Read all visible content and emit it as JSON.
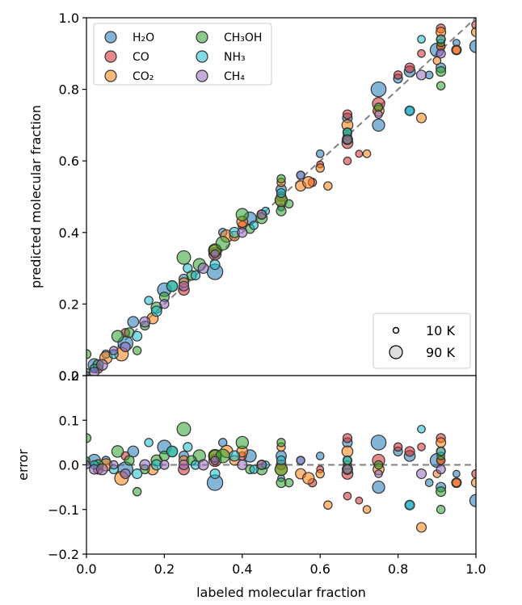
{
  "chart_data": [
    {
      "type": "scatter",
      "panel": "top",
      "xlim": [
        0.0,
        1.0
      ],
      "ylim": [
        0.0,
        1.0
      ],
      "xticks": [
        "0.0",
        "0.2",
        "0.4",
        "0.6",
        "0.8",
        "1.0"
      ],
      "yticks": [
        "0.0",
        "0.2",
        "0.4",
        "0.6",
        "0.8",
        "1.0"
      ],
      "xlabel": "",
      "ylabel": "predicted molecular fraction",
      "reference_line": {
        "style": "dashed",
        "color": "#808080",
        "x": [
          0.0,
          1.0
        ],
        "y": [
          0.0,
          1.0
        ]
      },
      "legend": {
        "placement": "top-left",
        "entries": [
          {
            "label": "H₂O",
            "color": "#1f77b4"
          },
          {
            "label": "CO",
            "color": "#d62728"
          },
          {
            "label": "CO₂",
            "color": "#ff7f0e"
          },
          {
            "label": "CH₃OH",
            "color": "#2ca02c"
          },
          {
            "label": "NH₃",
            "color": "#17becf"
          },
          {
            "label": "CH₄",
            "color": "#9467bd"
          }
        ]
      },
      "size_legend": {
        "placement": "bottom-right",
        "entries": [
          {
            "label": "10 K",
            "temperature_K": 10
          },
          {
            "label": "90 K",
            "temperature_K": 90
          }
        ]
      },
      "series": [
        {
          "name": "H₂O",
          "color": "#1f77b4",
          "points": [
            [
              0.02,
              0.03,
              60
            ],
            [
              0.05,
              0.06,
              30
            ],
            [
              0.1,
              0.09,
              80
            ],
            [
              0.12,
              0.15,
              50
            ],
            [
              0.2,
              0.24,
              70
            ],
            [
              0.25,
              0.27,
              40
            ],
            [
              0.33,
              0.29,
              85
            ],
            [
              0.35,
              0.4,
              30
            ],
            [
              0.42,
              0.44,
              60
            ],
            [
              0.5,
              0.47,
              20
            ],
            [
              0.5,
              0.52,
              45
            ],
            [
              0.6,
              0.62,
              25
            ],
            [
              0.67,
              0.72,
              40
            ],
            [
              0.75,
              0.8,
              80
            ],
            [
              0.75,
              0.7,
              60
            ],
            [
              0.83,
              0.85,
              50
            ],
            [
              0.83,
              0.74,
              30
            ],
            [
              0.9,
              0.91,
              70
            ],
            [
              0.91,
              0.86,
              40
            ],
            [
              0.95,
              0.93,
              20
            ],
            [
              1.0,
              0.92,
              60
            ],
            [
              0.8,
              0.83,
              35
            ],
            [
              0.88,
              0.84,
              25
            ]
          ]
        },
        {
          "name": "CO",
          "color": "#d62728",
          "points": [
            [
              0.03,
              0.02,
              40
            ],
            [
              0.1,
              0.12,
              30
            ],
            [
              0.25,
              0.24,
              50
            ],
            [
              0.33,
              0.34,
              60
            ],
            [
              0.4,
              0.42,
              30
            ],
            [
              0.5,
              0.5,
              40
            ],
            [
              0.6,
              0.59,
              20
            ],
            [
              0.67,
              0.73,
              35
            ],
            [
              0.67,
              0.65,
              50
            ],
            [
              0.67,
              0.6,
              25
            ],
            [
              0.75,
              0.76,
              60
            ],
            [
              0.8,
              0.84,
              30
            ],
            [
              0.83,
              0.86,
              40
            ],
            [
              0.91,
              0.97,
              35
            ],
            [
              0.91,
              0.92,
              30
            ],
            [
              0.95,
              0.91,
              40
            ],
            [
              1.0,
              0.98,
              30
            ],
            [
              0.86,
              0.9,
              25
            ],
            [
              0.58,
              0.54,
              30
            ],
            [
              0.7,
              0.62,
              20
            ]
          ]
        },
        {
          "name": "CO₂",
          "color": "#ff7f0e",
          "points": [
            [
              0.05,
              0.05,
              60
            ],
            [
              0.09,
              0.06,
              70
            ],
            [
              0.17,
              0.16,
              50
            ],
            [
              0.25,
              0.26,
              40
            ],
            [
              0.33,
              0.35,
              65
            ],
            [
              0.36,
              0.39,
              60
            ],
            [
              0.4,
              0.43,
              50
            ],
            [
              0.45,
              0.45,
              40
            ],
            [
              0.5,
              0.49,
              60
            ],
            [
              0.5,
              0.54,
              30
            ],
            [
              0.55,
              0.53,
              45
            ],
            [
              0.57,
              0.54,
              55
            ],
            [
              0.6,
              0.58,
              30
            ],
            [
              0.67,
              0.7,
              50
            ],
            [
              0.67,
              0.67,
              30
            ],
            [
              0.72,
              0.62,
              25
            ],
            [
              0.75,
              0.74,
              50
            ],
            [
              0.86,
              0.72,
              40
            ],
            [
              0.91,
              0.96,
              40
            ],
            [
              0.91,
              0.94,
              35
            ],
            [
              0.91,
              0.92,
              30
            ],
            [
              0.95,
              0.91,
              30
            ],
            [
              1.0,
              0.96,
              35
            ],
            [
              0.38,
              0.39,
              40
            ],
            [
              0.62,
              0.53,
              30
            ],
            [
              0.9,
              0.88,
              25
            ]
          ]
        },
        {
          "name": "CH₃OH",
          "color": "#2ca02c",
          "points": [
            [
              0.0,
              0.06,
              35
            ],
            [
              0.0,
              0.01,
              20
            ],
            [
              0.03,
              0.03,
              45
            ],
            [
              0.08,
              0.11,
              55
            ],
            [
              0.11,
              0.12,
              40
            ],
            [
              0.15,
              0.14,
              35
            ],
            [
              0.18,
              0.19,
              50
            ],
            [
              0.2,
              0.22,
              40
            ],
            [
              0.25,
              0.33,
              70
            ],
            [
              0.29,
              0.31,
              60
            ],
            [
              0.33,
              0.35,
              55
            ],
            [
              0.35,
              0.37,
              70
            ],
            [
              0.4,
              0.45,
              60
            ],
            [
              0.42,
              0.41,
              35
            ],
            [
              0.45,
              0.44,
              50
            ],
            [
              0.5,
              0.55,
              30
            ],
            [
              0.5,
              0.49,
              60
            ],
            [
              0.5,
              0.46,
              40
            ],
            [
              0.52,
              0.48,
              30
            ],
            [
              0.67,
              0.68,
              35
            ],
            [
              0.67,
              0.66,
              45
            ],
            [
              0.75,
              0.75,
              30
            ],
            [
              0.91,
              0.85,
              40
            ],
            [
              0.91,
              0.81,
              30
            ],
            [
              0.91,
              0.93,
              25
            ],
            [
              0.13,
              0.07,
              30
            ],
            [
              0.22,
              0.25,
              45
            ],
            [
              0.27,
              0.28,
              40
            ]
          ]
        },
        {
          "name": "NH₃",
          "color": "#17becf",
          "points": [
            [
              0.02,
              0.02,
              30
            ],
            [
              0.07,
              0.06,
              35
            ],
            [
              0.13,
              0.11,
              40
            ],
            [
              0.18,
              0.18,
              45
            ],
            [
              0.22,
              0.25,
              50
            ],
            [
              0.28,
              0.28,
              35
            ],
            [
              0.33,
              0.31,
              40
            ],
            [
              0.38,
              0.4,
              45
            ],
            [
              0.43,
              0.42,
              30
            ],
            [
              0.5,
              0.51,
              35
            ],
            [
              0.55,
              0.56,
              25
            ],
            [
              0.67,
              0.68,
              30
            ],
            [
              0.83,
              0.74,
              40
            ],
            [
              0.86,
              0.94,
              25
            ],
            [
              0.91,
              0.94,
              30
            ],
            [
              0.16,
              0.21,
              30
            ],
            [
              0.26,
              0.3,
              35
            ],
            [
              0.46,
              0.46,
              25
            ]
          ]
        },
        {
          "name": "CH₄",
          "color": "#9467bd",
          "points": [
            [
              0.0,
              0.0,
              25
            ],
            [
              0.02,
              0.01,
              40
            ],
            [
              0.04,
              0.03,
              50
            ],
            [
              0.07,
              0.07,
              30
            ],
            [
              0.1,
              0.08,
              40
            ],
            [
              0.15,
              0.15,
              45
            ],
            [
              0.2,
              0.2,
              35
            ],
            [
              0.25,
              0.25,
              40
            ],
            [
              0.3,
              0.3,
              45
            ],
            [
              0.33,
              0.34,
              30
            ],
            [
              0.4,
              0.4,
              40
            ],
            [
              0.45,
              0.45,
              35
            ],
            [
              0.55,
              0.56,
              30
            ],
            [
              0.67,
              0.66,
              35
            ],
            [
              0.75,
              0.73,
              25
            ],
            [
              0.86,
              0.84,
              40
            ],
            [
              0.91,
              0.9,
              35
            ]
          ]
        }
      ]
    },
    {
      "type": "scatter",
      "panel": "bottom",
      "xlim": [
        0.0,
        1.0
      ],
      "ylim": [
        -0.2,
        0.2
      ],
      "xticks": [
        "0.0",
        "0.2",
        "0.4",
        "0.6",
        "0.8",
        "1.0"
      ],
      "yticks": [
        "−0.2",
        "−0.1",
        "0.0",
        "0.1",
        "0.2"
      ],
      "xlabel": "labeled molecular fraction",
      "ylabel": "error",
      "reference_line": {
        "style": "dashed",
        "color": "#808080",
        "x": [
          0.0,
          1.0
        ],
        "y": [
          0.0,
          0.0
        ]
      },
      "derived_from": "predicted minus labeled molecular fraction of the top panel series"
    }
  ]
}
